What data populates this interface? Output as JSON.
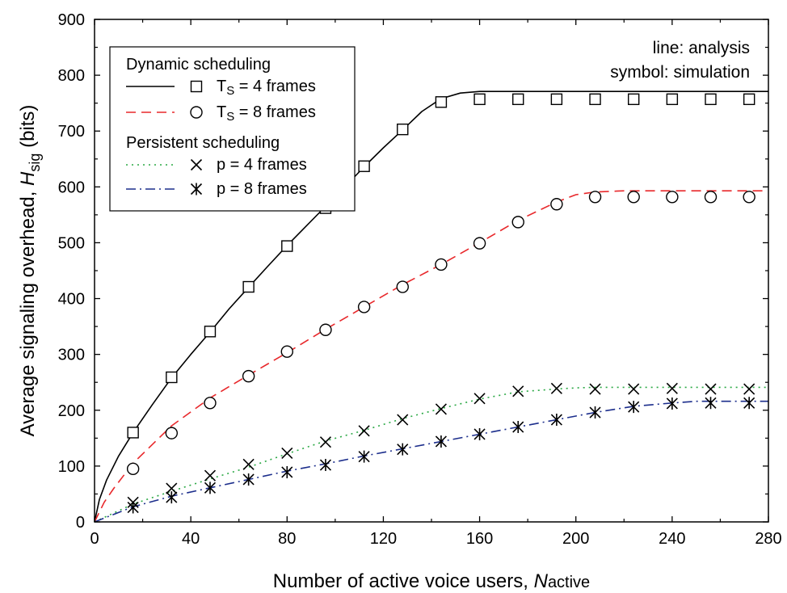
{
  "chart_data": {
    "type": "line",
    "xlabel": "Number of active voice users, ",
    "xlabel_var": "N",
    "xlabel_sub": "active",
    "ylabel": "Average signaling overhead, ",
    "ylabel_var": "H",
    "ylabel_sub": "sig",
    "ylabel_unit": " (bits)",
    "xlim": [
      0,
      280
    ],
    "ylim": [
      0,
      900
    ],
    "xticks": [
      0,
      40,
      80,
      120,
      160,
      200,
      240,
      280
    ],
    "yticks": [
      0,
      100,
      200,
      300,
      400,
      500,
      600,
      700,
      800,
      900
    ],
    "annotations": [
      "line: analysis",
      "symbol: simulation"
    ],
    "legend": {
      "placement": "top-left",
      "groups": [
        {
          "title": "Dynamic scheduling",
          "entries": [
            0,
            1
          ]
        },
        {
          "title": "Persistent scheduling",
          "entries": [
            2,
            3
          ]
        }
      ]
    },
    "series": [
      {
        "label_main": "T",
        "label_sub": "S",
        "label_rest": " = 4 frames",
        "color": "#000000",
        "dash": "solid",
        "marker": "square",
        "line_x": [
          0,
          2,
          5,
          10,
          16,
          24,
          32,
          40,
          48,
          56,
          64,
          72,
          80,
          88,
          96,
          104,
          112,
          120,
          128,
          136,
          144,
          152,
          160,
          170,
          180,
          200,
          220,
          240,
          260,
          280
        ],
        "line_y": [
          0,
          40,
          75,
          118,
          160,
          210,
          258,
          300,
          340,
          382,
          420,
          458,
          495,
          530,
          565,
          600,
          636,
          670,
          702,
          735,
          758,
          768,
          771,
          771,
          771,
          771,
          771,
          771,
          771,
          771
        ],
        "points_x": [
          16,
          32,
          48,
          64,
          80,
          96,
          112,
          128,
          144,
          160,
          176,
          192,
          208,
          224,
          240,
          256,
          272
        ],
        "points_y": [
          160,
          259,
          341,
          421,
          494,
          562,
          637,
          703,
          752,
          757,
          757,
          757,
          757,
          757,
          757,
          757,
          757
        ]
      },
      {
        "label_main": "T",
        "label_sub": "S",
        "label_rest": " = 8 frames",
        "color": "#e8282b",
        "dash": "dashed",
        "marker": "circle",
        "line_x": [
          0,
          4,
          8,
          16,
          32,
          48,
          64,
          80,
          96,
          112,
          128,
          144,
          160,
          176,
          192,
          200,
          208,
          220,
          240,
          260,
          280
        ],
        "line_y": [
          0,
          35,
          60,
          105,
          172,
          222,
          263,
          303,
          345,
          385,
          425,
          461,
          500,
          540,
          573,
          586,
          591,
          593,
          593,
          593,
          593
        ],
        "points_x": [
          16,
          32,
          48,
          64,
          80,
          96,
          112,
          128,
          144,
          160,
          176,
          192,
          208,
          224,
          240,
          256,
          272
        ],
        "points_y": [
          95,
          159,
          213,
          261,
          305,
          344,
          385,
          421,
          461,
          499,
          537,
          569,
          582,
          582,
          582,
          582,
          582
        ]
      },
      {
        "label_main": "p = 4 frames",
        "label_sub": "",
        "label_rest": "",
        "color": "#2aa844",
        "dash": "dotted",
        "marker": "x",
        "line_x": [
          0,
          16,
          32,
          48,
          64,
          80,
          96,
          112,
          128,
          144,
          160,
          176,
          192,
          200,
          208,
          240,
          280
        ],
        "line_y": [
          0,
          32,
          55,
          77,
          98,
          122,
          145,
          164,
          185,
          203,
          220,
          233,
          238,
          240,
          241,
          241,
          241
        ],
        "points_x": [
          16,
          32,
          48,
          64,
          80,
          96,
          112,
          128,
          144,
          160,
          176,
          192,
          208,
          224,
          240,
          256,
          272
        ],
        "points_y": [
          35,
          60,
          83,
          103,
          123,
          143,
          163,
          183,
          202,
          221,
          234,
          239,
          238,
          238,
          239,
          238,
          238
        ]
      },
      {
        "label_main": "p = 8 frames",
        "label_sub": "",
        "label_rest": "",
        "color": "#1c2e8c",
        "dash": "dashdot",
        "marker": "asterisk",
        "line_x": [
          0,
          16,
          32,
          48,
          64,
          80,
          96,
          112,
          128,
          144,
          160,
          176,
          192,
          208,
          224,
          240,
          250,
          280
        ],
        "line_y": [
          0,
          27,
          46,
          61,
          76,
          91,
          104,
          118,
          131,
          144,
          157,
          170,
          183,
          196,
          207,
          213,
          216,
          216
        ],
        "points_x": [
          16,
          32,
          48,
          64,
          80,
          96,
          112,
          128,
          144,
          160,
          176,
          192,
          208,
          224,
          240,
          256,
          272
        ],
        "points_y": [
          26,
          44,
          61,
          76,
          89,
          102,
          117,
          130,
          144,
          157,
          170,
          183,
          196,
          206,
          212,
          213,
          213
        ]
      }
    ]
  }
}
